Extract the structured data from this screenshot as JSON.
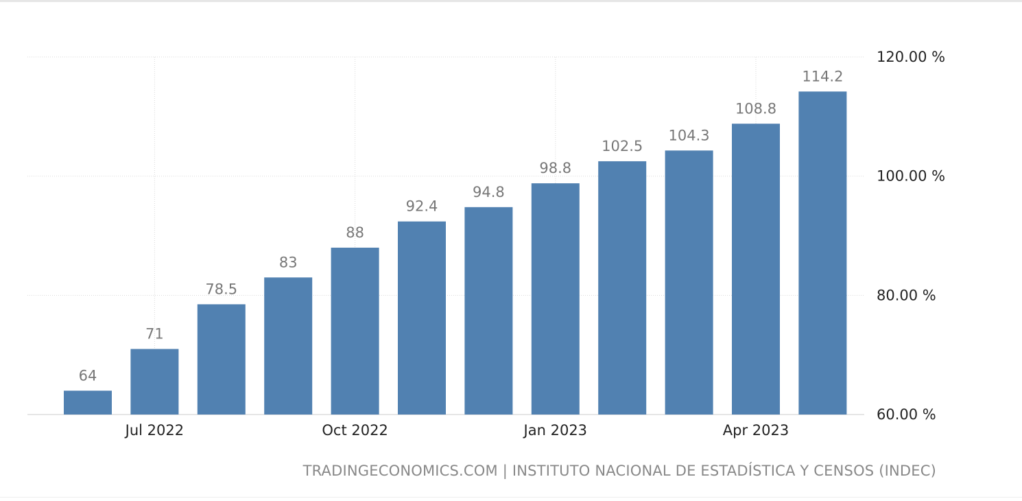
{
  "chart_data": {
    "type": "bar",
    "series": [
      {
        "values": [
          64,
          71,
          78.5,
          83,
          88,
          92.4,
          94.8,
          98.8,
          102.5,
          104.3,
          108.8,
          114.2
        ],
        "data_labels": [
          "64",
          "71",
          "78.5",
          "83",
          "88",
          "92.4",
          "94.8",
          "98.8",
          "102.5",
          "104.3",
          "108.8",
          "114.2"
        ],
        "color": "#5181b1"
      }
    ],
    "x": [
      "2022-06",
      "2022-07",
      "2022-08",
      "2022-09",
      "2022-10",
      "2022-11",
      "2022-12",
      "2023-01",
      "2023-02",
      "2023-03",
      "2023-04",
      "2023-05"
    ],
    "x_tick_labels": [
      {
        "at": "2022-07",
        "label": "Jul 2022"
      },
      {
        "at": "2022-10",
        "label": "Oct 2022"
      },
      {
        "at": "2023-01",
        "label": "Jan 2023"
      },
      {
        "at": "2023-04",
        "label": "Apr 2023"
      }
    ],
    "y_ticks": [
      {
        "value": 60,
        "label": "60.00 %"
      },
      {
        "value": 80,
        "label": "80.00 %"
      },
      {
        "value": 100,
        "label": "100.00 %"
      },
      {
        "value": 120,
        "label": "120.00 %"
      }
    ],
    "ylim": [
      60,
      120
    ],
    "y_axis_side": "right",
    "grid": true,
    "legend": false,
    "title": "",
    "xlabel": "",
    "ylabel": ""
  },
  "colors": {
    "bar": "#5181b1",
    "gridline": "#d9d9d9",
    "data_label": "#777777",
    "tick_label": "#222222",
    "source_text": "#888888"
  },
  "source": "TRADINGECONOMICS.COM | INSTITUTO NACIONAL DE ESTADÍSTICA Y CENSOS (INDEC)"
}
